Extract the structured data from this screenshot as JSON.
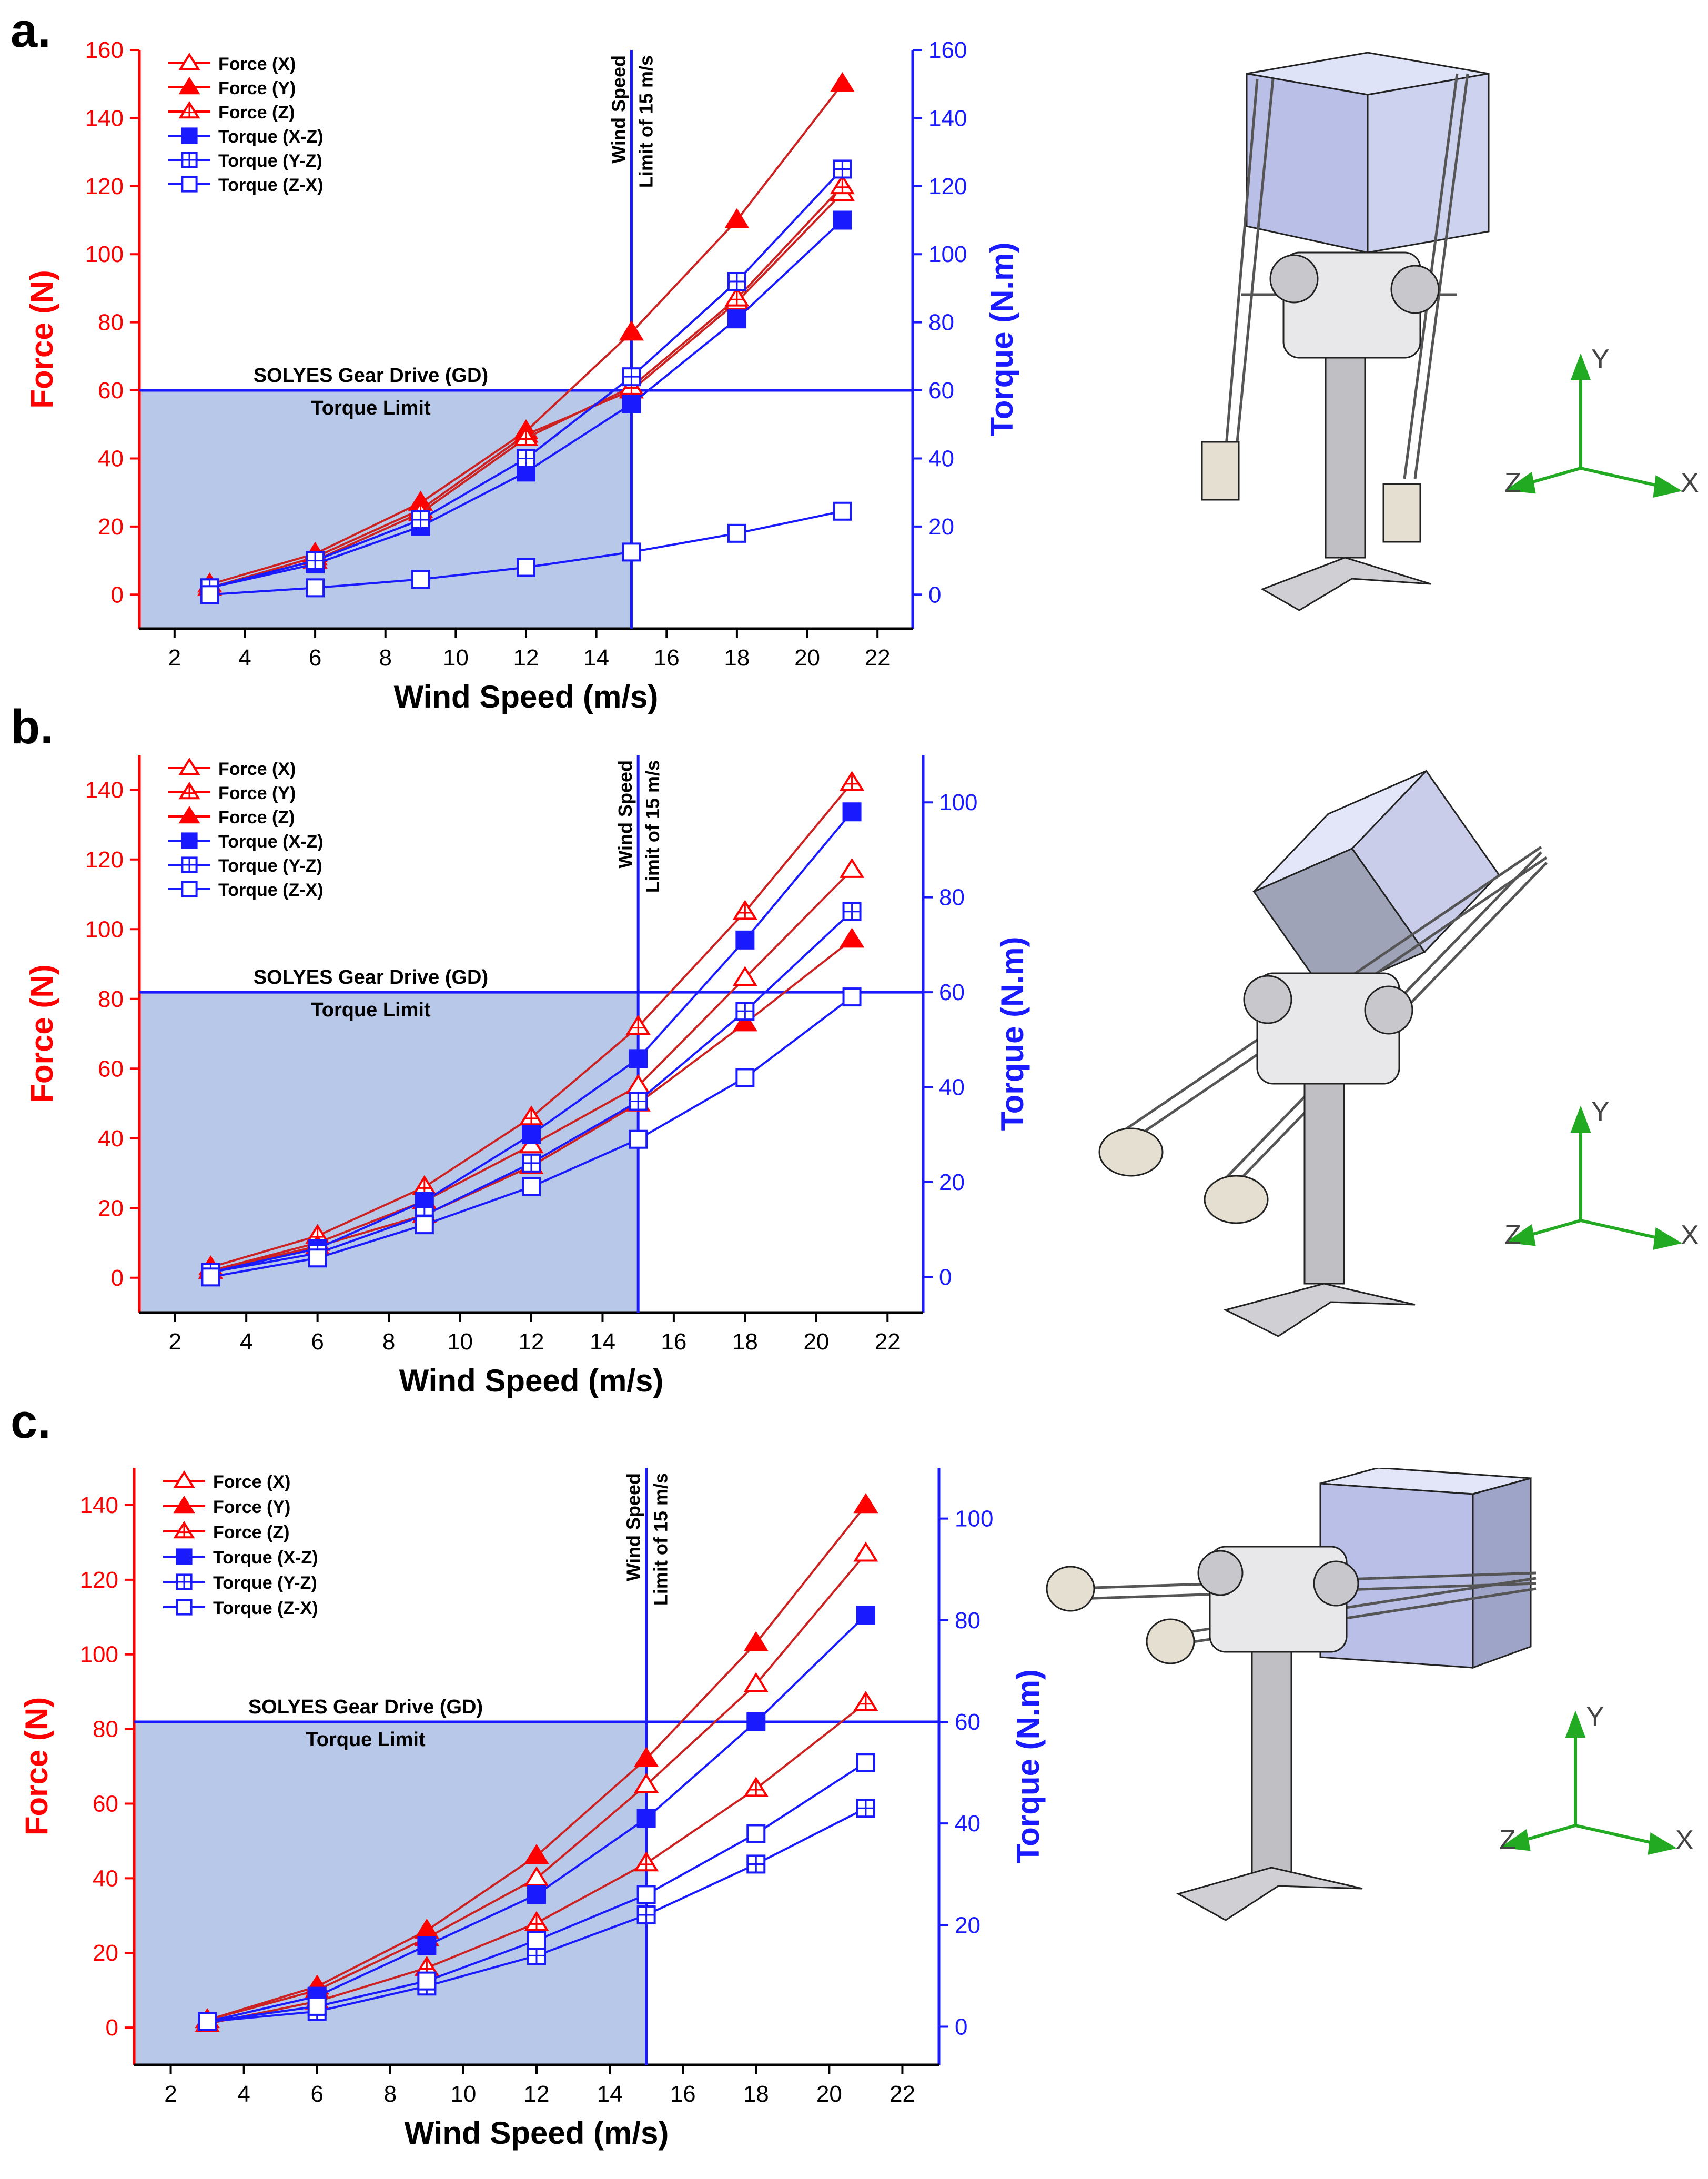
{
  "colors": {
    "force": "#ff0000",
    "force_dark": "#cc2222",
    "torque": "#1a1aff",
    "limit_fill": "#b8c8e8"
  },
  "labels": {
    "xlabel": "Wind Speed (m/s)",
    "ylabel_left": "Force (N)",
    "ylabel_right": "Torque (N.m)",
    "gd_title": "SOLYES Gear Drive (GD)",
    "gd_sub": "Torque Limit",
    "ws_line1": "Wind Speed",
    "ws_line2": "Limit of 15 m/s",
    "axis_x": "X",
    "axis_y": "Y",
    "axis_z": "Z"
  },
  "chart_data": [
    {
      "panel": "a.",
      "type": "line",
      "x": [
        3,
        6,
        9,
        12,
        15,
        18,
        21
      ],
      "xlim": [
        1,
        23
      ],
      "xticks": [
        2,
        4,
        6,
        8,
        10,
        12,
        14,
        16,
        18,
        20,
        22
      ],
      "ylim": [
        -10,
        160
      ],
      "yticks": [
        0,
        20,
        40,
        60,
        80,
        100,
        120,
        140,
        160
      ],
      "y2lim": [
        -10,
        160
      ],
      "y2ticks": [
        0,
        20,
        40,
        60,
        80,
        100,
        120,
        140,
        160
      ],
      "torque_limit": 60,
      "speed_limit": 15,
      "series": [
        {
          "name": "Force (X)",
          "axis": "left",
          "marker": "tri-open",
          "values": [
            2,
            11,
            25,
            47,
            60,
            86,
            118
          ]
        },
        {
          "name": "Force (Y)",
          "axis": "left",
          "marker": "tri-filled",
          "values": [
            3,
            12,
            27,
            48,
            77,
            110,
            150
          ]
        },
        {
          "name": "Force (Z)",
          "axis": "left",
          "marker": "tri-cross",
          "values": [
            2,
            10,
            24,
            46,
            61,
            87,
            120
          ]
        },
        {
          "name": "Torque (X-Z)",
          "axis": "right",
          "marker": "sq-filled",
          "values": [
            2,
            9,
            20,
            36,
            56,
            81,
            110
          ]
        },
        {
          "name": "Torque (Y-Z)",
          "axis": "right",
          "marker": "sq-cross",
          "values": [
            2,
            10,
            22,
            40,
            64,
            92,
            125
          ]
        },
        {
          "name": "Torque  (Z-X)",
          "axis": "right",
          "marker": "sq-open",
          "values": [
            0,
            2,
            4.5,
            8,
            12.5,
            18,
            24.5
          ]
        }
      ]
    },
    {
      "panel": "b.",
      "type": "line",
      "x": [
        3,
        6,
        9,
        12,
        15,
        18,
        21
      ],
      "xlim": [
        1,
        23
      ],
      "xticks": [
        2,
        4,
        6,
        8,
        10,
        12,
        14,
        16,
        18,
        20,
        22
      ],
      "ylim": [
        -10,
        150
      ],
      "yticks": [
        0,
        20,
        40,
        60,
        80,
        100,
        120,
        140
      ],
      "y2lim": [
        -7.5,
        110
      ],
      "y2ticks": [
        0,
        20,
        40,
        60,
        80,
        100
      ],
      "torque_limit": 60,
      "speed_limit": 15,
      "series": [
        {
          "name": "Force (X)",
          "axis": "left",
          "marker": "tri-open",
          "values": [
            2,
            10,
            22,
            38,
            55,
            86,
            117
          ]
        },
        {
          "name": "Force (Y)",
          "axis": "left",
          "marker": "tri-cross",
          "values": [
            3,
            12,
            26,
            46,
            72,
            105,
            142
          ]
        },
        {
          "name": "Force (Z)",
          "axis": "left",
          "marker": "tri-filled",
          "values": [
            2,
            9,
            18,
            32,
            50,
            73,
            97
          ]
        },
        {
          "name": "Torque (X-Z)",
          "axis": "right",
          "marker": "sq-filled",
          "values": [
            1,
            6,
            16,
            30,
            46,
            71,
            98
          ]
        },
        {
          "name": "Torque (Y-Z)",
          "axis": "right",
          "marker": "sq-cross",
          "values": [
            1,
            5,
            13,
            24,
            37,
            56,
            77
          ]
        },
        {
          "name": "Torque  (Z-X)",
          "axis": "right",
          "marker": "sq-open",
          "values": [
            0,
            4,
            11,
            19,
            29,
            42,
            59
          ]
        }
      ]
    },
    {
      "panel": "c.",
      "type": "line",
      "x": [
        3,
        6,
        9,
        12,
        15,
        18,
        21
      ],
      "xlim": [
        1,
        23
      ],
      "xticks": [
        2,
        4,
        6,
        8,
        10,
        12,
        14,
        16,
        18,
        20,
        22
      ],
      "ylim": [
        -10,
        150
      ],
      "yticks": [
        0,
        20,
        40,
        60,
        80,
        100,
        120,
        140
      ],
      "y2lim": [
        -7.5,
        110
      ],
      "y2ticks": [
        0,
        20,
        40,
        60,
        80,
        100
      ],
      "torque_limit": 60,
      "speed_limit": 15,
      "series": [
        {
          "name": "Force (X)",
          "axis": "left",
          "marker": "tri-open",
          "values": [
            2,
            10,
            24,
            40,
            65,
            92,
            127
          ]
        },
        {
          "name": "Force (Y)",
          "axis": "left",
          "marker": "tri-filled",
          "values": [
            2,
            11,
            26,
            46,
            72,
            103,
            140
          ]
        },
        {
          "name": "Force (Z)",
          "axis": "left",
          "marker": "tri-cross",
          "values": [
            1,
            7,
            16,
            28,
            44,
            64,
            87
          ]
        },
        {
          "name": "Torque (X-Z)",
          "axis": "right",
          "marker": "sq-filled",
          "values": [
            1,
            6,
            16,
            26,
            41,
            60,
            81
          ]
        },
        {
          "name": "Torque (Y-Z)",
          "axis": "right",
          "marker": "sq-cross",
          "values": [
            1,
            3,
            8,
            14,
            22,
            32,
            43
          ]
        },
        {
          "name": "Torque  (Z-X)",
          "axis": "right",
          "marker": "sq-open",
          "values": [
            1,
            4,
            9,
            17,
            26,
            38,
            52
          ]
        }
      ]
    }
  ]
}
